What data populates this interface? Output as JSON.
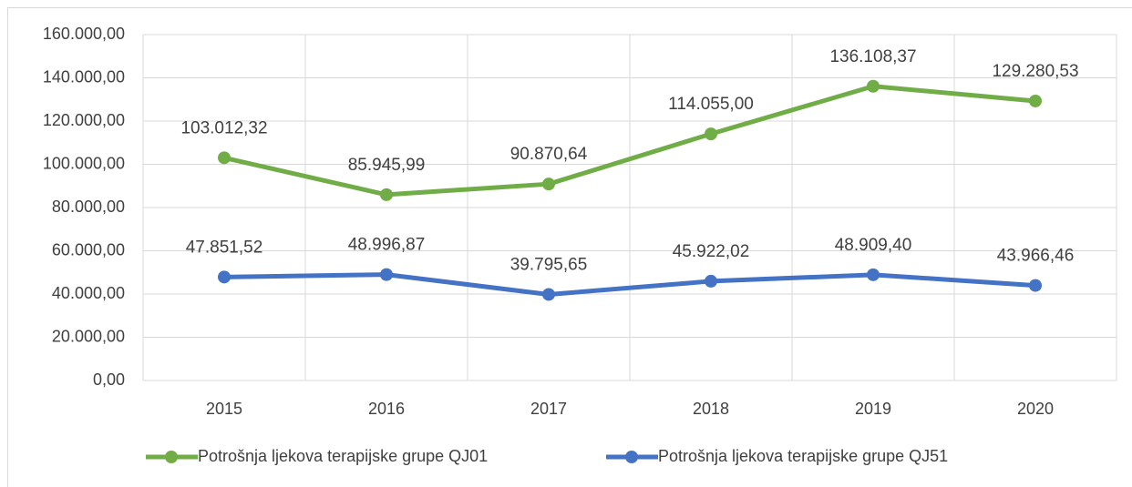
{
  "chart_data": {
    "type": "line",
    "categories": [
      "2015",
      "2016",
      "2017",
      "2018",
      "2019",
      "2020"
    ],
    "series": [
      {
        "name": "Potrošnja ljekova terapijske grupe QJ01",
        "color": "#70ad47",
        "values": [
          103012.32,
          85945.99,
          90870.64,
          114055.0,
          136108.37,
          129280.53
        ],
        "value_labels": [
          "103.012,32",
          "85.945,99",
          "90.870,64",
          "114.055,00",
          "136.108,37",
          "129.280,53"
        ]
      },
      {
        "name": "Potrošnja ljekova terapijske grupe QJ51",
        "color": "#4472c4",
        "values": [
          47851.52,
          48996.87,
          39795.65,
          45922.02,
          48909.4,
          43966.46
        ],
        "value_labels": [
          "47.851,52",
          "48.996,87",
          "39.795,65",
          "45.922,02",
          "48.909,40",
          "43.966,46"
        ]
      }
    ],
    "ylim": [
      0,
      160000
    ],
    "yticks": [
      {
        "value": 0,
        "label": "0,00"
      },
      {
        "value": 20000,
        "label": "20.000,00"
      },
      {
        "value": 40000,
        "label": "40.000,00"
      },
      {
        "value": 60000,
        "label": "60.000,00"
      },
      {
        "value": 80000,
        "label": "80.000,00"
      },
      {
        "value": 100000,
        "label": "100.000,00"
      },
      {
        "value": 120000,
        "label": "120.000,00"
      },
      {
        "value": 140000,
        "label": "140.000,00"
      },
      {
        "value": 160000,
        "label": "160.000,00"
      }
    ],
    "grid": true,
    "legend": "bottom"
  }
}
